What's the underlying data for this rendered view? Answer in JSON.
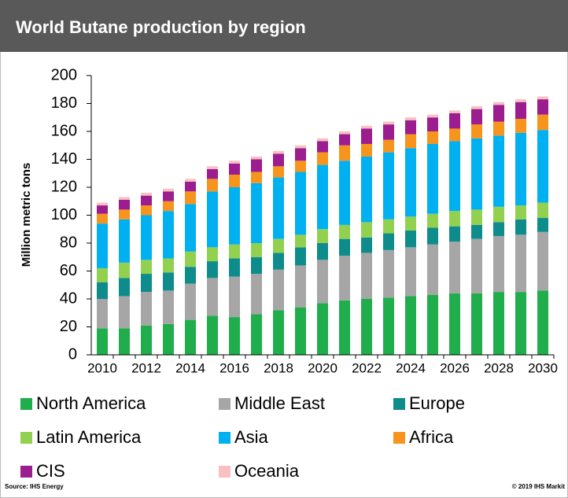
{
  "chart_data": {
    "type": "bar",
    "stacked": true,
    "title": "World Butane production by region",
    "y_label": "Million metric tons",
    "source": "Source: IHS Energy",
    "copyright": "© 2019 IHS Markit",
    "categories": [
      "2010",
      null,
      "2012",
      null,
      "2014",
      null,
      "2016",
      null,
      "2018",
      null,
      "2020",
      null,
      "2022",
      null,
      "2024",
      null,
      "2026",
      null,
      "2028",
      null,
      "2030"
    ],
    "series": [
      {
        "name": "North America",
        "color": "#1fae4b",
        "values": [
          19,
          19,
          21,
          22,
          25,
          28,
          27,
          29,
          32,
          34,
          37,
          39,
          40,
          41,
          42,
          43,
          44,
          44,
          45,
          45,
          46
        ]
      },
      {
        "name": "Middle East",
        "color": "#a6a6a6",
        "values": [
          21,
          23,
          24,
          24,
          26,
          27,
          29,
          29,
          29,
          30,
          31,
          32,
          33,
          34,
          35,
          36,
          37,
          39,
          40,
          41,
          42
        ]
      },
      {
        "name": "Europe",
        "color": "#0e8c8c",
        "values": [
          12,
          13,
          13,
          13,
          12,
          12,
          13,
          12,
          12,
          13,
          12,
          12,
          11,
          12,
          12,
          12,
          11,
          10,
          10,
          11,
          10
        ]
      },
      {
        "name": "Latin America",
        "color": "#92d050",
        "values": [
          10,
          11,
          10,
          10,
          11,
          10,
          10,
          10,
          10,
          9,
          10,
          10,
          11,
          10,
          10,
          10,
          11,
          11,
          11,
          10,
          11
        ]
      },
      {
        "name": "Asia",
        "color": "#00b0f0",
        "values": [
          32,
          31,
          32,
          34,
          34,
          40,
          41,
          43,
          44,
          45,
          46,
          46,
          47,
          48,
          49,
          50,
          50,
          51,
          51,
          52,
          52
        ]
      },
      {
        "name": "Africa",
        "color": "#f7941d",
        "values": [
          7,
          7,
          7,
          7,
          9,
          9,
          9,
          8,
          8,
          8,
          9,
          11,
          9,
          9,
          10,
          9,
          9,
          10,
          10,
          10,
          11
        ]
      },
      {
        "name": "CIS",
        "color": "#9b1d8f",
        "values": [
          6,
          7,
          7,
          7,
          7,
          7,
          8,
          9,
          9,
          9,
          8,
          8,
          11,
          11,
          10,
          10,
          11,
          11,
          12,
          12,
          11
        ]
      },
      {
        "name": "Oceania",
        "color": "#f8c0c0",
        "values": [
          2,
          2,
          2,
          2,
          2,
          2,
          2,
          2,
          2,
          2,
          2,
          2,
          2,
          2,
          2,
          2,
          2,
          2,
          2,
          2,
          2
        ]
      }
    ],
    "ylim": [
      0,
      200
    ],
    "yticks": [
      0,
      20,
      40,
      60,
      80,
      100,
      120,
      140,
      160,
      180,
      200
    ],
    "legend": "bottom"
  }
}
